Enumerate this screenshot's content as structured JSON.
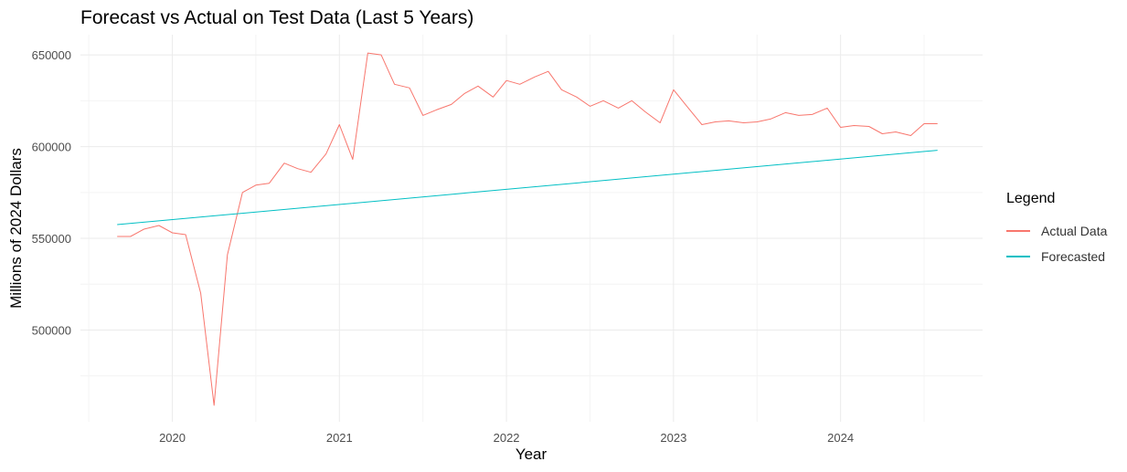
{
  "chart_data": {
    "type": "line",
    "title": "Forecast vs Actual on Test Data (Last 5 Years)",
    "xlabel": "Year",
    "ylabel": "Millions of 2024 Dollars",
    "x_ticks": [
      "2020",
      "2021",
      "2022",
      "2023",
      "2024"
    ],
    "y_ticks": [
      "500000",
      "550000",
      "600000",
      "650000"
    ],
    "xlim": [
      2019.45,
      2024.85
    ],
    "ylim": [
      450000,
      661000
    ],
    "grid": true,
    "legend": {
      "title": "Legend",
      "placement": "right"
    },
    "series": [
      {
        "name": "Actual Data",
        "color": "#F8766D",
        "x": [
          2019.67,
          2019.75,
          2019.83,
          2019.92,
          2020.0,
          2020.08,
          2020.17,
          2020.25,
          2020.33,
          2020.42,
          2020.5,
          2020.58,
          2020.67,
          2020.75,
          2020.83,
          2020.92,
          2021.0,
          2021.08,
          2021.17,
          2021.25,
          2021.33,
          2021.42,
          2021.5,
          2021.58,
          2021.67,
          2021.75,
          2021.83,
          2021.92,
          2022.0,
          2022.08,
          2022.17,
          2022.25,
          2022.33,
          2022.42,
          2022.5,
          2022.58,
          2022.67,
          2022.75,
          2022.83,
          2022.92,
          2023.0,
          2023.08,
          2023.17,
          2023.25,
          2023.33,
          2023.42,
          2023.5,
          2023.58,
          2023.67,
          2023.75,
          2023.83,
          2023.92,
          2024.0,
          2024.08,
          2024.17,
          2024.25,
          2024.33,
          2024.42,
          2024.5,
          2024.58
        ],
        "y": [
          551000,
          551000,
          555000,
          557000,
          553000,
          552000,
          520000,
          459000,
          541000,
          575000,
          579000,
          580000,
          591000,
          588000,
          586000,
          596000,
          612000,
          593000,
          651000,
          650000,
          634000,
          632000,
          617000,
          620000,
          623000,
          629000,
          633000,
          627000,
          636000,
          634000,
          638000,
          641000,
          631000,
          627000,
          622000,
          625000,
          621000,
          625000,
          619000,
          613000,
          631000,
          622000,
          612000,
          613500,
          614000,
          613000,
          613500,
          615000,
          618500,
          617000,
          617500,
          621000,
          610500,
          611500,
          611000,
          607000,
          608000,
          606000,
          612500,
          612500
        ]
      },
      {
        "name": "Forecasted",
        "color": "#00BFC4",
        "x": [
          2019.67,
          2024.58
        ],
        "y": [
          557500,
          598000
        ]
      }
    ]
  }
}
